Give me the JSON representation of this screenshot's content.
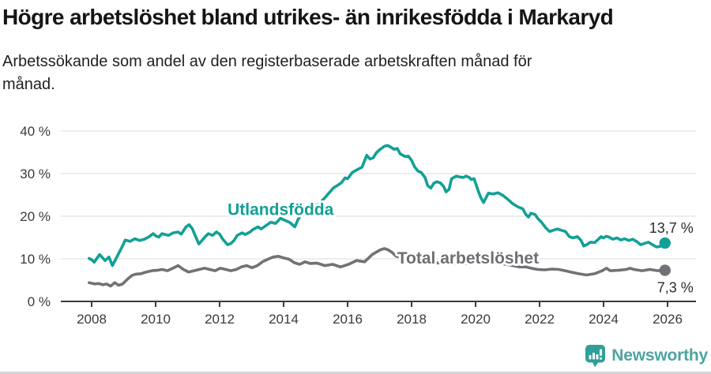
{
  "header": {
    "title": "Högre arbetslöshet bland utrikes- än inrikesfödda i Markaryd",
    "subtitle_line1": "Arbetssökande som andel av den registerbaserade arbetskraften månad för",
    "subtitle_line2": "månad."
  },
  "colors": {
    "foreign_born": "#12a096",
    "total": "#717176",
    "total_label": "#6e6e73",
    "gridline": "#dbdbdb",
    "axis": "#3c3c3c",
    "logo_teal": "#2f9f9a"
  },
  "chart_data": {
    "type": "line",
    "title": "Högre arbetslöshet bland utrikes- än inrikesfödda i Markaryd",
    "xlabel": "",
    "ylabel": "",
    "xlim": [
      2007.8,
      2026.9
    ],
    "ylim": [
      0,
      40
    ],
    "grid": "horizontal",
    "y_ticks": [
      {
        "v": 0,
        "label": "0 %"
      },
      {
        "v": 10,
        "label": "10 %"
      },
      {
        "v": 20,
        "label": "20 %"
      },
      {
        "v": 30,
        "label": "30 %"
      },
      {
        "v": 40,
        "label": "40 %"
      }
    ],
    "x_ticks": [
      {
        "v": 2008,
        "label": "2008"
      },
      {
        "v": 2010,
        "label": "2010"
      },
      {
        "v": 2012,
        "label": "2012"
      },
      {
        "v": 2014,
        "label": "2014"
      },
      {
        "v": 2016,
        "label": "2016"
      },
      {
        "v": 2018,
        "label": "2018"
      },
      {
        "v": 2020,
        "label": "2020"
      },
      {
        "v": 2022,
        "label": "2022"
      },
      {
        "v": 2024,
        "label": "2024"
      },
      {
        "v": 2026,
        "label": "2026"
      }
    ],
    "series": [
      {
        "name": "Total arbetslöshet",
        "color": "#717176",
        "label_color": "#6e6e73",
        "inline_label": {
          "text": "Total arbetslöshet",
          "x": 2017.55,
          "y_pct": 8.9
        },
        "end_label": "7,3 %",
        "end_value": 7.3,
        "end_label_side": "below",
        "points": [
          [
            2007.92,
            4.4
          ],
          [
            2008.1,
            4.1
          ],
          [
            2008.22,
            4.2
          ],
          [
            2008.35,
            3.9
          ],
          [
            2008.47,
            4.1
          ],
          [
            2008.59,
            3.6
          ],
          [
            2008.72,
            4.4
          ],
          [
            2008.84,
            3.8
          ],
          [
            2008.97,
            4.1
          ],
          [
            2009.13,
            5.3
          ],
          [
            2009.26,
            6.1
          ],
          [
            2009.38,
            6.4
          ],
          [
            2009.54,
            6.5
          ],
          [
            2009.71,
            6.9
          ],
          [
            2009.88,
            7.2
          ],
          [
            2010.04,
            7.3
          ],
          [
            2010.21,
            7.5
          ],
          [
            2010.37,
            7.2
          ],
          [
            2010.54,
            7.8
          ],
          [
            2010.7,
            8.4
          ],
          [
            2010.87,
            7.5
          ],
          [
            2011.03,
            6.9
          ],
          [
            2011.2,
            7.2
          ],
          [
            2011.36,
            7.5
          ],
          [
            2011.53,
            7.8
          ],
          [
            2011.69,
            7.5
          ],
          [
            2011.86,
            7.2
          ],
          [
            2012.02,
            7.8
          ],
          [
            2012.19,
            7.5
          ],
          [
            2012.35,
            7.2
          ],
          [
            2012.52,
            7.5
          ],
          [
            2012.68,
            8.1
          ],
          [
            2012.85,
            8.4
          ],
          [
            2013.01,
            7.9
          ],
          [
            2013.18,
            8.4
          ],
          [
            2013.34,
            9.3
          ],
          [
            2013.51,
            9.9
          ],
          [
            2013.67,
            10.4
          ],
          [
            2013.84,
            10.6
          ],
          [
            2014.0,
            10.2
          ],
          [
            2014.17,
            9.9
          ],
          [
            2014.33,
            9.1
          ],
          [
            2014.5,
            8.7
          ],
          [
            2014.67,
            9.3
          ],
          [
            2014.83,
            8.9
          ],
          [
            2015.04,
            9.0
          ],
          [
            2015.29,
            8.4
          ],
          [
            2015.53,
            8.7
          ],
          [
            2015.78,
            8.1
          ],
          [
            2016.03,
            8.7
          ],
          [
            2016.28,
            9.6
          ],
          [
            2016.53,
            9.3
          ],
          [
            2016.77,
            11.0
          ],
          [
            2017.02,
            12.1
          ],
          [
            2017.15,
            12.4
          ],
          [
            2017.27,
            12.1
          ],
          [
            2017.39,
            11.5
          ],
          [
            2017.52,
            10.6
          ],
          [
            2017.75,
            10.1
          ],
          [
            2018.0,
            9.7
          ],
          [
            2018.3,
            9.4
          ],
          [
            2018.6,
            9.1
          ],
          [
            2019.0,
            9.0
          ],
          [
            2019.4,
            8.8
          ],
          [
            2019.8,
            9.0
          ],
          [
            2020.1,
            9.4
          ],
          [
            2020.4,
            9.2
          ],
          [
            2020.8,
            8.9
          ],
          [
            2021.1,
            8.5
          ],
          [
            2021.36,
            8.1
          ],
          [
            2021.57,
            8.1
          ],
          [
            2021.73,
            7.8
          ],
          [
            2021.94,
            7.5
          ],
          [
            2022.15,
            7.4
          ],
          [
            2022.4,
            7.6
          ],
          [
            2022.6,
            7.5
          ],
          [
            2022.8,
            7.2
          ],
          [
            2022.97,
            6.9
          ],
          [
            2023.22,
            6.5
          ],
          [
            2023.47,
            6.2
          ],
          [
            2023.72,
            6.5
          ],
          [
            2023.96,
            7.2
          ],
          [
            2024.09,
            7.8
          ],
          [
            2024.21,
            7.2
          ],
          [
            2024.46,
            7.3
          ],
          [
            2024.71,
            7.5
          ],
          [
            2024.83,
            7.8
          ],
          [
            2024.95,
            7.5
          ],
          [
            2025.2,
            7.2
          ],
          [
            2025.45,
            7.5
          ],
          [
            2025.7,
            7.2
          ],
          [
            2025.92,
            7.3
          ]
        ]
      },
      {
        "name": "Utlandsfödda",
        "color": "#12a096",
        "label_color": "#12a096",
        "inline_label": {
          "text": "Utlandsfödda",
          "x": 2012.25,
          "y_pct": 20.3
        },
        "end_label": "13,7 %",
        "end_value": 13.7,
        "end_label_side": "above",
        "points": [
          [
            2007.92,
            10.1
          ],
          [
            2008.0,
            9.8
          ],
          [
            2008.08,
            9.2
          ],
          [
            2008.25,
            11.0
          ],
          [
            2008.42,
            9.6
          ],
          [
            2008.54,
            10.4
          ],
          [
            2008.65,
            8.4
          ],
          [
            2008.8,
            10.6
          ],
          [
            2008.95,
            12.8
          ],
          [
            2009.05,
            14.4
          ],
          [
            2009.2,
            14.1
          ],
          [
            2009.35,
            14.7
          ],
          [
            2009.5,
            14.3
          ],
          [
            2009.65,
            14.6
          ],
          [
            2009.8,
            15.2
          ],
          [
            2009.92,
            15.9
          ],
          [
            2010.0,
            15.4
          ],
          [
            2010.1,
            15.1
          ],
          [
            2010.2,
            15.9
          ],
          [
            2010.4,
            15.5
          ],
          [
            2010.55,
            16.1
          ],
          [
            2010.7,
            16.3
          ],
          [
            2010.8,
            15.8
          ],
          [
            2010.95,
            17.5
          ],
          [
            2011.05,
            18.0
          ],
          [
            2011.15,
            17.0
          ],
          [
            2011.25,
            15.2
          ],
          [
            2011.35,
            13.5
          ],
          [
            2011.45,
            14.3
          ],
          [
            2011.55,
            15.2
          ],
          [
            2011.65,
            15.9
          ],
          [
            2011.78,
            15.5
          ],
          [
            2011.9,
            16.3
          ],
          [
            2012.0,
            15.8
          ],
          [
            2012.1,
            14.6
          ],
          [
            2012.25,
            13.3
          ],
          [
            2012.35,
            13.6
          ],
          [
            2012.45,
            14.3
          ],
          [
            2012.55,
            15.5
          ],
          [
            2012.7,
            16.1
          ],
          [
            2012.8,
            15.7
          ],
          [
            2012.95,
            16.3
          ],
          [
            2013.05,
            16.9
          ],
          [
            2013.2,
            17.5
          ],
          [
            2013.3,
            17.0
          ],
          [
            2013.45,
            17.8
          ],
          [
            2013.6,
            18.6
          ],
          [
            2013.75,
            18.3
          ],
          [
            2013.9,
            19.5
          ],
          [
            2014.05,
            19.0
          ],
          [
            2014.2,
            18.5
          ],
          [
            2014.35,
            17.5
          ],
          [
            2014.45,
            19.2
          ],
          [
            2014.55,
            20.4
          ],
          [
            2014.7,
            21.5
          ],
          [
            2014.9,
            23.2
          ],
          [
            2015.05,
            22.4
          ],
          [
            2015.3,
            24.4
          ],
          [
            2015.55,
            26.6
          ],
          [
            2015.8,
            27.8
          ],
          [
            2015.92,
            29.0
          ],
          [
            2016.0,
            28.8
          ],
          [
            2016.15,
            30.3
          ],
          [
            2016.3,
            30.9
          ],
          [
            2016.45,
            31.5
          ],
          [
            2016.6,
            34.3
          ],
          [
            2016.7,
            33.4
          ],
          [
            2016.8,
            33.7
          ],
          [
            2016.9,
            34.9
          ],
          [
            2017.0,
            35.6
          ],
          [
            2017.15,
            36.4
          ],
          [
            2017.25,
            36.6
          ],
          [
            2017.35,
            36.2
          ],
          [
            2017.45,
            35.7
          ],
          [
            2017.55,
            35.9
          ],
          [
            2017.65,
            34.6
          ],
          [
            2017.8,
            34.0
          ],
          [
            2017.9,
            34.1
          ],
          [
            2018.0,
            33.1
          ],
          [
            2018.1,
            31.5
          ],
          [
            2018.2,
            30.6
          ],
          [
            2018.3,
            30.3
          ],
          [
            2018.42,
            29.1
          ],
          [
            2018.5,
            27.2
          ],
          [
            2018.6,
            26.6
          ],
          [
            2018.7,
            27.8
          ],
          [
            2018.8,
            28.1
          ],
          [
            2018.9,
            27.8
          ],
          [
            2019.0,
            27.0
          ],
          [
            2019.08,
            25.7
          ],
          [
            2019.17,
            26.3
          ],
          [
            2019.25,
            28.8
          ],
          [
            2019.4,
            29.4
          ],
          [
            2019.5,
            29.2
          ],
          [
            2019.62,
            29.1
          ],
          [
            2019.7,
            29.4
          ],
          [
            2019.8,
            29.1
          ],
          [
            2019.87,
            28.6
          ],
          [
            2019.95,
            28.8
          ],
          [
            2020.0,
            27.8
          ],
          [
            2020.08,
            26.0
          ],
          [
            2020.16,
            24.4
          ],
          [
            2020.25,
            23.2
          ],
          [
            2020.4,
            25.4
          ],
          [
            2020.55,
            25.2
          ],
          [
            2020.7,
            25.5
          ],
          [
            2020.85,
            24.9
          ],
          [
            2021.0,
            24.0
          ],
          [
            2021.15,
            23.0
          ],
          [
            2021.3,
            22.3
          ],
          [
            2021.48,
            21.7
          ],
          [
            2021.57,
            20.4
          ],
          [
            2021.65,
            19.8
          ],
          [
            2021.73,
            20.7
          ],
          [
            2021.86,
            20.4
          ],
          [
            2021.94,
            19.5
          ],
          [
            2022.06,
            18.6
          ],
          [
            2022.19,
            17.3
          ],
          [
            2022.31,
            16.4
          ],
          [
            2022.43,
            16.7
          ],
          [
            2022.56,
            17.0
          ],
          [
            2022.68,
            16.7
          ],
          [
            2022.81,
            16.4
          ],
          [
            2022.93,
            15.2
          ],
          [
            2023.05,
            14.9
          ],
          [
            2023.18,
            15.2
          ],
          [
            2023.3,
            14.3
          ],
          [
            2023.38,
            13.0
          ],
          [
            2023.47,
            13.3
          ],
          [
            2023.59,
            13.9
          ],
          [
            2023.72,
            13.8
          ],
          [
            2023.84,
            14.6
          ],
          [
            2023.92,
            15.2
          ],
          [
            2024.0,
            14.9
          ],
          [
            2024.09,
            15.3
          ],
          [
            2024.17,
            15.1
          ],
          [
            2024.29,
            14.6
          ],
          [
            2024.42,
            14.9
          ],
          [
            2024.54,
            14.4
          ],
          [
            2024.66,
            14.7
          ],
          [
            2024.79,
            14.3
          ],
          [
            2024.91,
            14.6
          ],
          [
            2025.03,
            14.1
          ],
          [
            2025.16,
            13.3
          ],
          [
            2025.28,
            13.6
          ],
          [
            2025.4,
            13.9
          ],
          [
            2025.53,
            13.3
          ],
          [
            2025.65,
            12.8
          ],
          [
            2025.78,
            12.9
          ],
          [
            2025.92,
            13.7
          ]
        ]
      }
    ]
  },
  "footer": {
    "brand": "Newsworthy"
  }
}
